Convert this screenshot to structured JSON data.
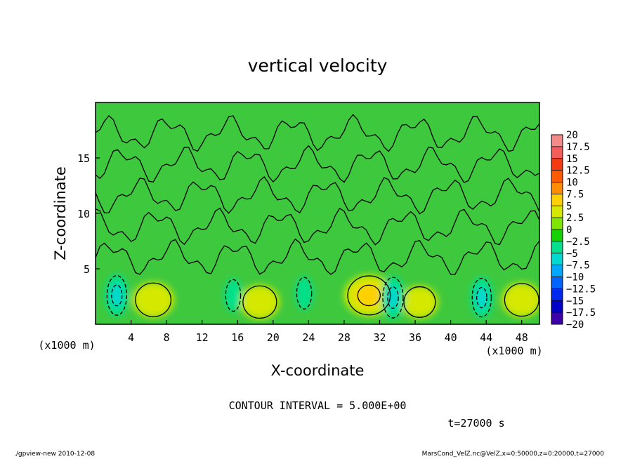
{
  "chart_data": {
    "type": "heatmap",
    "title": "vertical velocity",
    "xlabel": "X-coordinate",
    "ylabel": "Z-coordinate",
    "x_unit_label": "(x1000 m)",
    "xlim": [
      0,
      50
    ],
    "ylim": [
      0,
      20
    ],
    "x_ticks": [
      4,
      8,
      12,
      16,
      20,
      24,
      28,
      32,
      36,
      40,
      44,
      48
    ],
    "y_ticks": [
      5,
      10,
      15
    ],
    "colorbar": {
      "levels": [
        20,
        17.5,
        15,
        12.5,
        10,
        7.5,
        5,
        2.5,
        0,
        -2.5,
        -5,
        -7.5,
        -10,
        -12.5,
        -15,
        -17.5,
        -20
      ],
      "colors": [
        "#f58a8a",
        "#f45c5c",
        "#f53a12",
        "#ff5a00",
        "#ff8c00",
        "#ffd000",
        "#d4e800",
        "#7ee600",
        "#14d200",
        "#00e08c",
        "#00d8d0",
        "#00a8ff",
        "#0064ff",
        "#0028ee",
        "#0000c8",
        "#3c00a8"
      ]
    },
    "contour_interval_text": "CONTOUR INTERVAL = 5.000E+00",
    "field_features": [
      {
        "x": 6.5,
        "z": 2.2,
        "w": 3.5,
        "sign": "up"
      },
      {
        "x": 18.5,
        "z": 2.0,
        "w": 2.8,
        "sign": "up"
      },
      {
        "x": 30.8,
        "z": 2.6,
        "w": 6.2,
        "sign": "up"
      },
      {
        "x": 36.5,
        "z": 2.0,
        "w": 2.0,
        "sign": "up"
      },
      {
        "x": 48.0,
        "z": 2.2,
        "w": 3.0,
        "sign": "up"
      },
      {
        "x": 2.4,
        "z": 2.6,
        "w": -6.5,
        "sign": "down"
      },
      {
        "x": 15.5,
        "z": 2.6,
        "w": -2.5,
        "sign": "down"
      },
      {
        "x": 23.5,
        "z": 2.8,
        "w": -2.5,
        "sign": "down"
      },
      {
        "x": 33.5,
        "z": 2.4,
        "w": -7.0,
        "sign": "down"
      },
      {
        "x": 43.5,
        "z": 2.4,
        "w": -6.0,
        "sign": "down"
      }
    ]
  },
  "annotations": {
    "time": "t=27000 s",
    "footer_left": "./gpview-new  2010-12-08",
    "footer_right": "MarsCond_VelZ.nc@VelZ,x=0:50000,z=0:20000,t=27000"
  }
}
